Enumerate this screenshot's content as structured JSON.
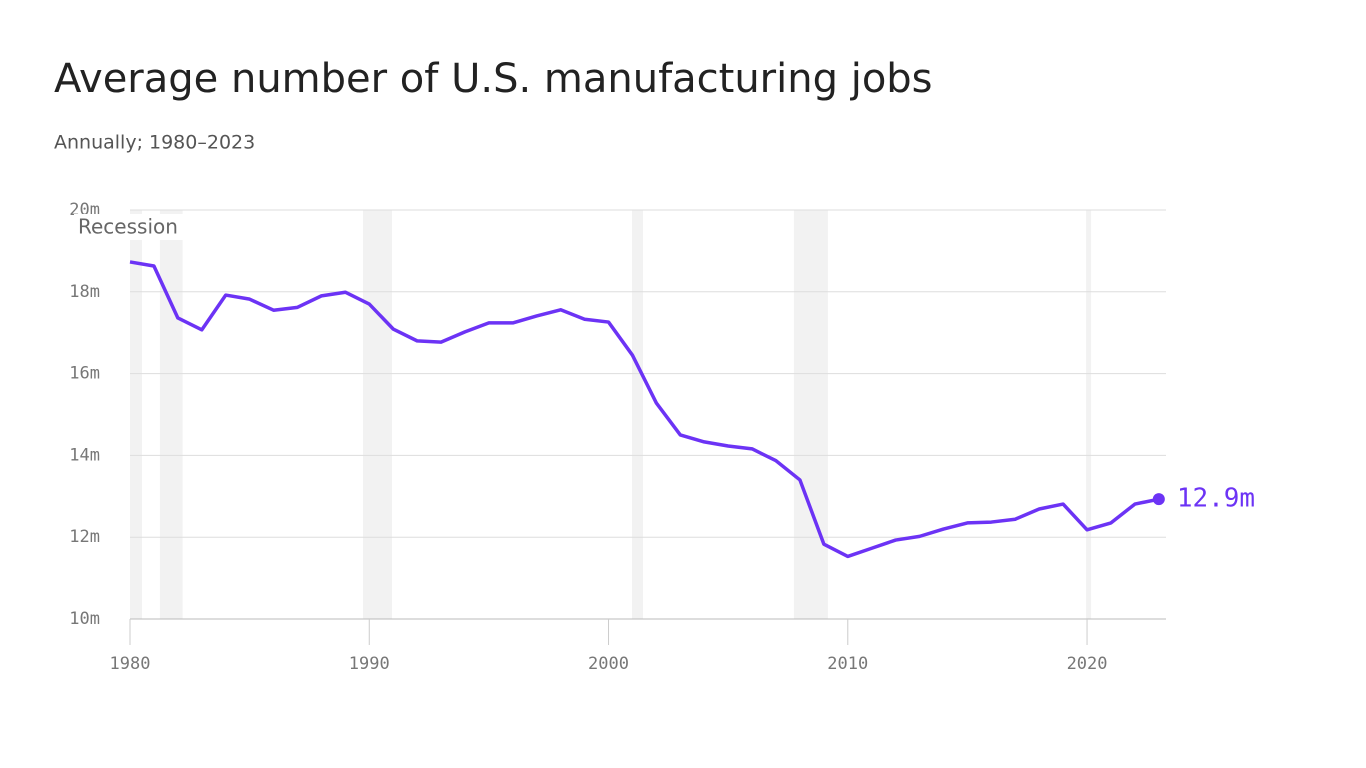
{
  "chart_data": {
    "type": "line",
    "title": "Average number of U.S. manufacturing jobs",
    "subtitle": "Annually; 1980–2023",
    "recession_label": "Recession",
    "recessions": [
      [
        1980.0,
        1980.5
      ],
      [
        1981.25,
        1982.2
      ],
      [
        1989.74,
        1990.95
      ],
      [
        2000.98,
        2001.44
      ],
      [
        2007.75,
        2009.17
      ],
      [
        2019.96,
        2020.17
      ]
    ],
    "recession_color": "#f2f2f2",
    "x": [
      1980,
      1981,
      1982,
      1983,
      1984,
      1985,
      1986,
      1987,
      1988,
      1989,
      1990,
      1991,
      1992,
      1993,
      1994,
      1995,
      1996,
      1997,
      1998,
      1999,
      2000,
      2001,
      2002,
      2003,
      2004,
      2005,
      2006,
      2007,
      2008,
      2009,
      2010,
      2011,
      2012,
      2013,
      2014,
      2015,
      2016,
      2017,
      2018,
      2019,
      2020,
      2021,
      2022,
      2023
    ],
    "series": [
      {
        "name": "Manufacturing jobs",
        "color": "#6c33f5",
        "end_label": "12.9m",
        "values": [
          18.73,
          18.63,
          17.36,
          17.07,
          17.92,
          17.82,
          17.55,
          17.62,
          17.9,
          17.99,
          17.7,
          17.09,
          16.8,
          16.77,
          17.02,
          17.24,
          17.24,
          17.41,
          17.56,
          17.33,
          17.26,
          16.45,
          15.28,
          14.5,
          14.33,
          14.23,
          14.16,
          13.87,
          13.4,
          11.83,
          11.53,
          11.73,
          11.93,
          12.02,
          12.2,
          12.35,
          12.37,
          12.44,
          12.69,
          12.81,
          12.18,
          12.35,
          12.81,
          12.93
        ]
      }
    ],
    "xlim": [
      1980,
      2023.3
    ],
    "xticks": [
      1980,
      1990,
      2000,
      2010,
      2020
    ],
    "ylim": [
      10,
      20
    ],
    "yticks": [
      {
        "value": 10,
        "label": "10m"
      },
      {
        "value": 12,
        "label": "12m"
      },
      {
        "value": 14,
        "label": "14m"
      },
      {
        "value": 16,
        "label": "16m"
      },
      {
        "value": 18,
        "label": "18m"
      },
      {
        "value": 20,
        "label": "20m"
      }
    ],
    "grid": true
  }
}
